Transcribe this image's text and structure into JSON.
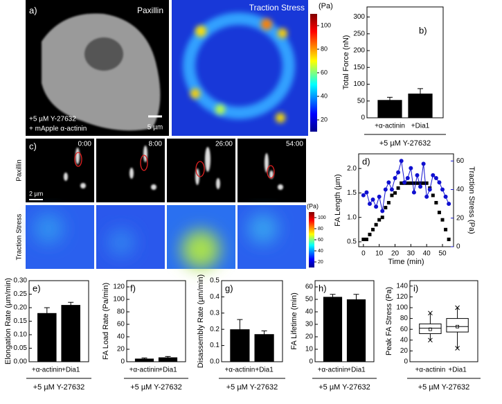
{
  "images": {
    "a": {
      "label": "a)",
      "channel": "Paxillin",
      "treatment": [
        "+5 µM Y-27632",
        "+ mApple α-actinin"
      ],
      "scale_bar": "5 µm"
    },
    "traction": {
      "title": "Traction Stress",
      "unit": "(Pa)",
      "range": [
        10,
        110
      ],
      "ticks": [
        20,
        40,
        60,
        80,
        100
      ]
    },
    "c": {
      "label": "c)",
      "times": [
        "0:00",
        "8:00",
        "26:00",
        "54:00"
      ],
      "rows": [
        "Paxillin",
        "Traction Stress"
      ],
      "scale_bar": "2 µm",
      "unit": "(Pa)",
      "range": [
        10,
        110
      ],
      "ticks": [
        20,
        40,
        60,
        80,
        100
      ]
    }
  },
  "chart_data": [
    {
      "type": "bar",
      "panel_label": "b)",
      "ylabel": "Total Force (nN)",
      "xlabel": "+5 µM Y-27632",
      "categories": [
        "+α-actinin",
        "+Dia1"
      ],
      "values": [
        53,
        72
      ],
      "errors": [
        8,
        15
      ],
      "ylim": [
        0,
        330
      ],
      "yticks": [
        0,
        50,
        100,
        150,
        200,
        250,
        300
      ],
      "color": "#000000"
    },
    {
      "type": "dual",
      "panel_label": "d)",
      "ylabel": "FA Length (µm)",
      "y2label": "Traction Stress (Pa)",
      "xlabel": "Time (min)",
      "x": [
        0,
        2,
        4,
        6,
        8,
        10,
        12,
        14,
        16,
        18,
        20,
        22,
        24,
        26,
        28,
        30,
        32,
        34,
        36,
        38,
        40,
        42,
        44,
        46,
        48,
        50,
        52,
        54
      ],
      "series": [
        {
          "color": "#000000",
          "values": [
            0.55,
            0.55,
            0.65,
            0.75,
            0.85,
            0.95,
            1.0,
            1.2,
            1.3,
            1.45,
            1.5,
            1.6,
            1.7,
            1.7,
            1.7,
            1.7,
            1.7,
            1.7,
            1.7,
            1.7,
            1.7,
            1.6,
            1.45,
            1.3,
            1.1,
            0.95,
            0.75,
            0.55
          ]
        },
        {
          "color": "#1010d0",
          "axis": "y2",
          "values": [
            36,
            38,
            30,
            33,
            28,
            35,
            25,
            40,
            45,
            40,
            48,
            52,
            60,
            45,
            48,
            55,
            38,
            50,
            42,
            58,
            35,
            40,
            50,
            48,
            45,
            40,
            35,
            30
          ]
        }
      ],
      "xlim": [
        -3,
        57
      ],
      "xticks": [
        0,
        10,
        20,
        30,
        40,
        50
      ],
      "ylim": [
        0.4,
        2.3
      ],
      "yticks": [
        {
          "value": 0.5,
          "label": "0.5"
        },
        {
          "value": 1.0,
          "label": "1.0"
        },
        {
          "value": 1.5,
          "label": "1.5"
        },
        {
          "value": 2.0,
          "label": "2.0"
        }
      ],
      "y2lim": [
        0,
        65
      ],
      "y2ticks": [
        0,
        20,
        40,
        60
      ]
    },
    {
      "type": "bar",
      "panel_label": "e)",
      "ylabel": "Elongation Rate (µm/min)",
      "xlabel": "+5 µM Y-27632",
      "categories": [
        "+α-actinin",
        "+Dia1"
      ],
      "values": [
        0.18,
        0.21
      ],
      "errors": [
        0.02,
        0.01
      ],
      "ylim": [
        0,
        0.3
      ],
      "yticks": [
        {
          "value": 0,
          "label": "0.00"
        },
        {
          "value": 0.05,
          "label": "0.05"
        },
        {
          "value": 0.1,
          "label": "0.10"
        },
        {
          "value": 0.15,
          "label": "0.15"
        },
        {
          "value": 0.2,
          "label": "0.20"
        },
        {
          "value": 0.25,
          "label": "0.25"
        },
        {
          "value": 0.3,
          "label": "0.30"
        }
      ],
      "color": "#000000"
    },
    {
      "type": "bar",
      "panel_label": "f)",
      "ylabel": "FA Load Rate (Pa/min)",
      "xlabel": "+5 µM Y-27632",
      "categories": [
        "+α-actinin",
        "+Dia1"
      ],
      "values": [
        5,
        7
      ],
      "errors": [
        1,
        1.5
      ],
      "ylim": [
        0,
        130
      ],
      "yticks": [
        0,
        20,
        40,
        60,
        80,
        100,
        120
      ],
      "color": "#000000"
    },
    {
      "type": "bar",
      "panel_label": "g)",
      "ylabel": "Disassembly Rate (µm/min)",
      "xlabel": "+5 µM Y-27632",
      "categories": [
        "+α-actinin",
        "+Dia1"
      ],
      "values": [
        0.2,
        0.17
      ],
      "errors": [
        0.06,
        0.02
      ],
      "ylim": [
        0,
        0.5
      ],
      "yticks": [
        {
          "value": 0,
          "label": "0.0"
        },
        {
          "value": 0.1,
          "label": "0.1"
        },
        {
          "value": 0.2,
          "label": "0.2"
        },
        {
          "value": 0.3,
          "label": "0.3"
        },
        {
          "value": 0.4,
          "label": "0.4"
        },
        {
          "value": 0.5,
          "label": "0.5"
        }
      ],
      "color": "#000000"
    },
    {
      "type": "bar",
      "panel_label": "h)",
      "ylabel": "FA Lifetime (min)",
      "xlabel": "+5 µM Y-27632",
      "categories": [
        "+α-actinin",
        "+Dia1"
      ],
      "values": [
        52,
        50
      ],
      "errors": [
        2,
        4
      ],
      "ylim": [
        0,
        65
      ],
      "yticks": [
        0,
        10,
        20,
        30,
        40,
        50,
        60
      ],
      "color": "#000000"
    },
    {
      "type": "box",
      "panel_label": "i)",
      "ylabel": "Peak FA Stress (Pa)",
      "xlabel": "+5 µM Y-27632",
      "categories": [
        "+α-actinin",
        "+Dia1"
      ],
      "boxes": [
        {
          "low": 40,
          "q1": 52,
          "median": 62,
          "q3": 70,
          "high": 90,
          "mean": 60
        },
        {
          "low": 25,
          "q1": 55,
          "median": 65,
          "q3": 80,
          "high": 100,
          "mean": 65
        }
      ],
      "ylim": [
        0,
        150
      ],
      "yticks": [
        0,
        20,
        40,
        60,
        80,
        100,
        120,
        140
      ]
    }
  ]
}
